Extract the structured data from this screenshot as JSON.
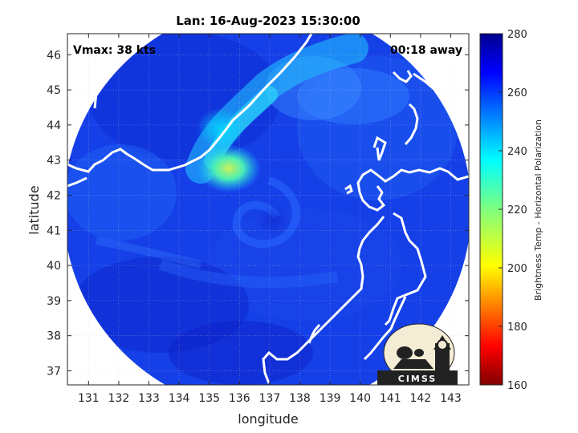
{
  "chart_data": {
    "type": "heatmap",
    "title": "Lan: 16-Aug-2023 15:30:00",
    "xlabel": "longitude",
    "ylabel": "latitude",
    "x_ticks": [
      131,
      132,
      133,
      134,
      135,
      136,
      137,
      138,
      139,
      140,
      141,
      142,
      143
    ],
    "y_ticks": [
      37,
      38,
      39,
      40,
      41,
      42,
      43,
      44,
      45,
      46
    ],
    "xlim": [
      130.3,
      143.6
    ],
    "ylim": [
      36.6,
      46.6
    ],
    "colorbar": {
      "label": "Brightness Temp - Horizontal Polarization",
      "ticks": [
        160,
        180,
        200,
        220,
        240,
        260,
        280
      ],
      "range": [
        160,
        280
      ],
      "colormap": "jet"
    },
    "annotations": {
      "vmax": "Vmax: 38 kts",
      "time_offset": "00:18 away"
    },
    "logo_text": "CIMSS",
    "grid": true
  }
}
